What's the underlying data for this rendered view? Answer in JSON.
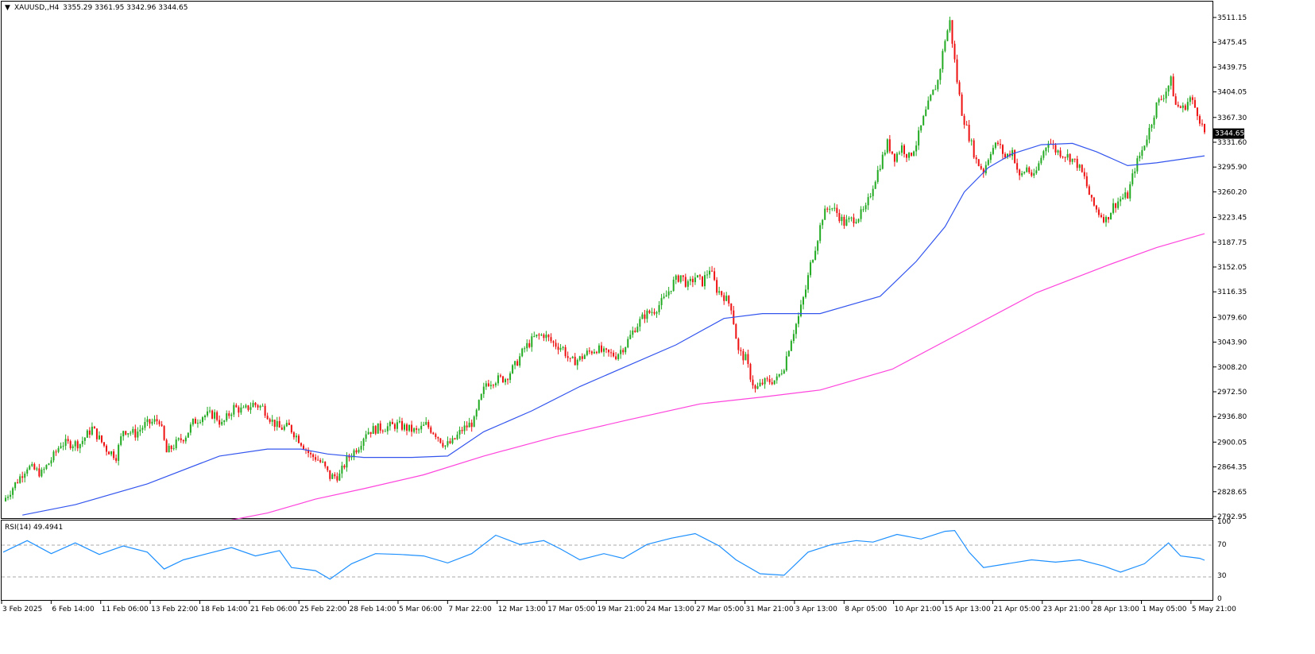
{
  "header": {
    "symbol": "XAUUSD,,H4",
    "ohlc": "3355.29 3361.95 3342.96 3344.65"
  },
  "rsi_panel": {
    "label": "RSI(14) 49.4941",
    "levels": [
      100,
      70,
      30,
      0
    ]
  },
  "colors": {
    "bull": "#22aa22",
    "bear": "#ee1111",
    "ma_fast": "#3355ee",
    "ma_slow": "#ff44dd",
    "rsi": "#1e90ff",
    "grid": "#aaaaaa"
  },
  "chart_data": [
    {
      "type": "candlestick",
      "instrument": "XAUUSD",
      "timeframe": "H4",
      "last_price": "3344.65",
      "y_ticks": [
        "3511.15",
        "3475.45",
        "3439.75",
        "3404.05",
        "3367.30",
        "3331.60",
        "3295.90",
        "3260.20",
        "3223.45",
        "3187.75",
        "3152.05",
        "3116.35",
        "3079.60",
        "3043.90",
        "3008.20",
        "2972.50",
        "2936.80",
        "2900.05",
        "2864.35",
        "2828.65",
        "2792.95"
      ],
      "x_ticks": [
        "3 Feb 2025",
        "6 Feb 14:00",
        "11 Feb 06:00",
        "13 Feb 22:00",
        "18 Feb 14:00",
        "21 Feb 06:00",
        "25 Feb 22:00",
        "28 Feb 14:00",
        "5 Mar 06:00",
        "7 Mar 22:00",
        "12 Mar 13:00",
        "17 Mar 05:00",
        "19 Mar 21:00",
        "24 Mar 13:00",
        "27 Mar 05:00",
        "31 Mar 21:00",
        "3 Apr 13:00",
        "8 Apr 05:00",
        "10 Apr 21:00",
        "15 Apr 13:00",
        "21 Apr 05:00",
        "23 Apr 21:00",
        "28 Apr 13:00",
        "1 May 05:00",
        "5 May 21:00"
      ],
      "ylim": [
        2792.95,
        3520
      ],
      "close_path": [
        [
          0,
          2815
        ],
        [
          10,
          2865
        ],
        [
          16,
          2855
        ],
        [
          21,
          2880
        ],
        [
          24,
          2898
        ],
        [
          32,
          2898
        ],
        [
          37,
          2920
        ],
        [
          43,
          2890
        ],
        [
          47,
          2880
        ],
        [
          50,
          2918
        ],
        [
          55,
          2912
        ],
        [
          59,
          2925
        ],
        [
          65,
          2932
        ],
        [
          68,
          2885
        ],
        [
          71,
          2895
        ],
        [
          76,
          2910
        ],
        [
          79,
          2928
        ],
        [
          83,
          2938
        ],
        [
          88,
          2940
        ],
        [
          91,
          2925
        ],
        [
          96,
          2950
        ],
        [
          100,
          2945
        ],
        [
          104,
          2955
        ],
        [
          108,
          2950
        ],
        [
          112,
          2930
        ],
        [
          115,
          2920
        ],
        [
          119,
          2922
        ],
        [
          124,
          2900
        ],
        [
          128,
          2880
        ],
        [
          130,
          2878
        ],
        [
          133,
          2868
        ],
        [
          136,
          2850
        ],
        [
          140,
          2852
        ],
        [
          143,
          2875
        ],
        [
          148,
          2895
        ],
        [
          151,
          2915
        ],
        [
          156,
          2920
        ],
        [
          160,
          2922
        ],
        [
          164,
          2925
        ],
        [
          168,
          2920
        ],
        [
          172,
          2915
        ],
        [
          176,
          2925
        ],
        [
          180,
          2912
        ],
        [
          184,
          2895
        ],
        [
          187,
          2900
        ],
        [
          191,
          2918
        ],
        [
          196,
          2930
        ],
        [
          198,
          2955
        ],
        [
          201,
          2985
        ],
        [
          205,
          2990
        ],
        [
          209,
          2992
        ],
        [
          213,
          3010
        ],
        [
          217,
          3035
        ],
        [
          221,
          3050
        ],
        [
          225,
          3055
        ],
        [
          229,
          3042
        ],
        [
          233,
          3035
        ],
        [
          236,
          3015
        ],
        [
          240,
          3020
        ],
        [
          243,
          3028
        ],
        [
          247,
          3035
        ],
        [
          250,
          3028
        ],
        [
          255,
          3025
        ],
        [
          259,
          3040
        ],
        [
          263,
          3065
        ],
        [
          267,
          3083
        ],
        [
          271,
          3090
        ],
        [
          275,
          3105
        ],
        [
          279,
          3130
        ],
        [
          282,
          3140
        ],
        [
          285,
          3125
        ],
        [
          288,
          3138
        ],
        [
          291,
          3130
        ],
        [
          294,
          3150
        ],
        [
          297,
          3120
        ],
        [
          300,
          3110
        ],
        [
          303,
          3095
        ],
        [
          306,
          3030
        ],
        [
          309,
          3020
        ],
        [
          311,
          2995
        ],
        [
          313,
          2975
        ],
        [
          316,
          2985
        ],
        [
          319,
          2988
        ],
        [
          322,
          2990
        ],
        [
          325,
          3010
        ],
        [
          328,
          3050
        ],
        [
          331,
          3080
        ],
        [
          334,
          3120
        ],
        [
          336,
          3155
        ],
        [
          339,
          3195
        ],
        [
          341,
          3225
        ],
        [
          344,
          3240
        ],
        [
          347,
          3230
        ],
        [
          350,
          3215
        ],
        [
          353,
          3220
        ],
        [
          356,
          3225
        ],
        [
          359,
          3235
        ],
        [
          362,
          3270
        ],
        [
          365,
          3300
        ],
        [
          368,
          3330
        ],
        [
          371,
          3310
        ],
        [
          374,
          3325
        ],
        [
          377,
          3310
        ],
        [
          380,
          3330
        ],
        [
          383,
          3365
        ],
        [
          386,
          3395
        ],
        [
          389,
          3420
        ],
        [
          392,
          3480
        ],
        [
          394,
          3505
        ],
        [
          397,
          3420
        ],
        [
          399,
          3375
        ],
        [
          402,
          3340
        ],
        [
          405,
          3305
        ],
        [
          408,
          3290
        ],
        [
          411,
          3320
        ],
        [
          414,
          3330
        ],
        [
          417,
          3310
        ],
        [
          420,
          3320
        ],
        [
          423,
          3280
        ],
        [
          426,
          3295
        ],
        [
          429,
          3280
        ],
        [
          432,
          3310
        ],
        [
          435,
          3335
        ],
        [
          438,
          3320
        ],
        [
          441,
          3315
        ],
        [
          444,
          3310
        ],
        [
          447,
          3300
        ],
        [
          450,
          3280
        ],
        [
          453,
          3245
        ],
        [
          456,
          3230
        ],
        [
          459,
          3220
        ],
        [
          462,
          3240
        ],
        [
          465,
          3250
        ],
        [
          468,
          3255
        ],
        [
          471,
          3295
        ],
        [
          474,
          3320
        ],
        [
          477,
          3350
        ],
        [
          480,
          3385
        ],
        [
          483,
          3400
        ],
        [
          486,
          3420
        ],
        [
          488,
          3385
        ],
        [
          491,
          3380
        ],
        [
          494,
          3395
        ],
        [
          497,
          3375
        ],
        [
          500,
          3345
        ]
      ],
      "moving_averages": [
        {
          "period_role": "fast",
          "color": "#3355ee",
          "values": [
            [
              8,
              2795
            ],
            [
              30,
              2810
            ],
            [
              60,
              2840
            ],
            [
              90,
              2880
            ],
            [
              110,
              2890
            ],
            [
              124,
              2890
            ],
            [
              135,
              2883
            ],
            [
              150,
              2878
            ],
            [
              170,
              2878
            ],
            [
              185,
              2880
            ],
            [
              200,
              2915
            ],
            [
              220,
              2945
            ],
            [
              240,
              2980
            ],
            [
              260,
              3010
            ],
            [
              280,
              3040
            ],
            [
              300,
              3078
            ],
            [
              316,
              3085
            ],
            [
              340,
              3085
            ],
            [
              365,
              3110
            ],
            [
              380,
              3160
            ],
            [
              392,
              3210
            ],
            [
              400,
              3260
            ],
            [
              410,
              3295
            ],
            [
              420,
              3315
            ],
            [
              432,
              3328
            ],
            [
              445,
              3330
            ],
            [
              455,
              3318
            ],
            [
              468,
              3298
            ],
            [
              480,
              3302
            ],
            [
              500,
              3312
            ]
          ]
        },
        {
          "period_role": "slow",
          "color": "#ff44dd",
          "values": [
            [
              95,
              2788
            ],
            [
              110,
              2798
            ],
            [
              130,
              2818
            ],
            [
              150,
              2833
            ],
            [
              175,
              2853
            ],
            [
              200,
              2880
            ],
            [
              230,
              2908
            ],
            [
              260,
              2932
            ],
            [
              290,
              2955
            ],
            [
              316,
              2965
            ],
            [
              340,
              2975
            ],
            [
              370,
              3005
            ],
            [
              400,
              3060
            ],
            [
              430,
              3115
            ],
            [
              460,
              3155
            ],
            [
              480,
              3180
            ],
            [
              500,
              3200
            ]
          ]
        }
      ]
    },
    {
      "type": "line",
      "indicator": "RSI(14)",
      "last_value": 49.4941,
      "ylim": [
        0,
        100
      ],
      "levels": [
        70,
        30
      ],
      "values": [
        [
          0,
          60
        ],
        [
          10,
          75
        ],
        [
          20,
          58
        ],
        [
          30,
          72
        ],
        [
          40,
          57
        ],
        [
          50,
          68
        ],
        [
          60,
          60
        ],
        [
          67,
          38
        ],
        [
          75,
          50
        ],
        [
          85,
          58
        ],
        [
          95,
          66
        ],
        [
          105,
          55
        ],
        [
          115,
          62
        ],
        [
          120,
          40
        ],
        [
          130,
          36
        ],
        [
          136,
          25
        ],
        [
          145,
          45
        ],
        [
          155,
          58
        ],
        [
          165,
          57
        ],
        [
          175,
          55
        ],
        [
          185,
          46
        ],
        [
          195,
          58
        ],
        [
          205,
          82
        ],
        [
          215,
          70
        ],
        [
          225,
          75
        ],
        [
          232,
          64
        ],
        [
          240,
          50
        ],
        [
          250,
          58
        ],
        [
          258,
          52
        ],
        [
          268,
          70
        ],
        [
          278,
          78
        ],
        [
          288,
          84
        ],
        [
          298,
          68
        ],
        [
          305,
          50
        ],
        [
          315,
          32
        ],
        [
          325,
          30
        ],
        [
          335,
          60
        ],
        [
          345,
          70
        ],
        [
          355,
          75
        ],
        [
          362,
          73
        ],
        [
          372,
          83
        ],
        [
          382,
          77
        ],
        [
          392,
          87
        ],
        [
          396,
          88
        ],
        [
          402,
          60
        ],
        [
          408,
          40
        ],
        [
          418,
          45
        ],
        [
          428,
          50
        ],
        [
          438,
          47
        ],
        [
          448,
          50
        ],
        [
          458,
          42
        ],
        [
          465,
          34
        ],
        [
          475,
          45
        ],
        [
          485,
          72
        ],
        [
          490,
          55
        ],
        [
          498,
          52
        ],
        [
          500,
          49.4941
        ]
      ]
    }
  ]
}
